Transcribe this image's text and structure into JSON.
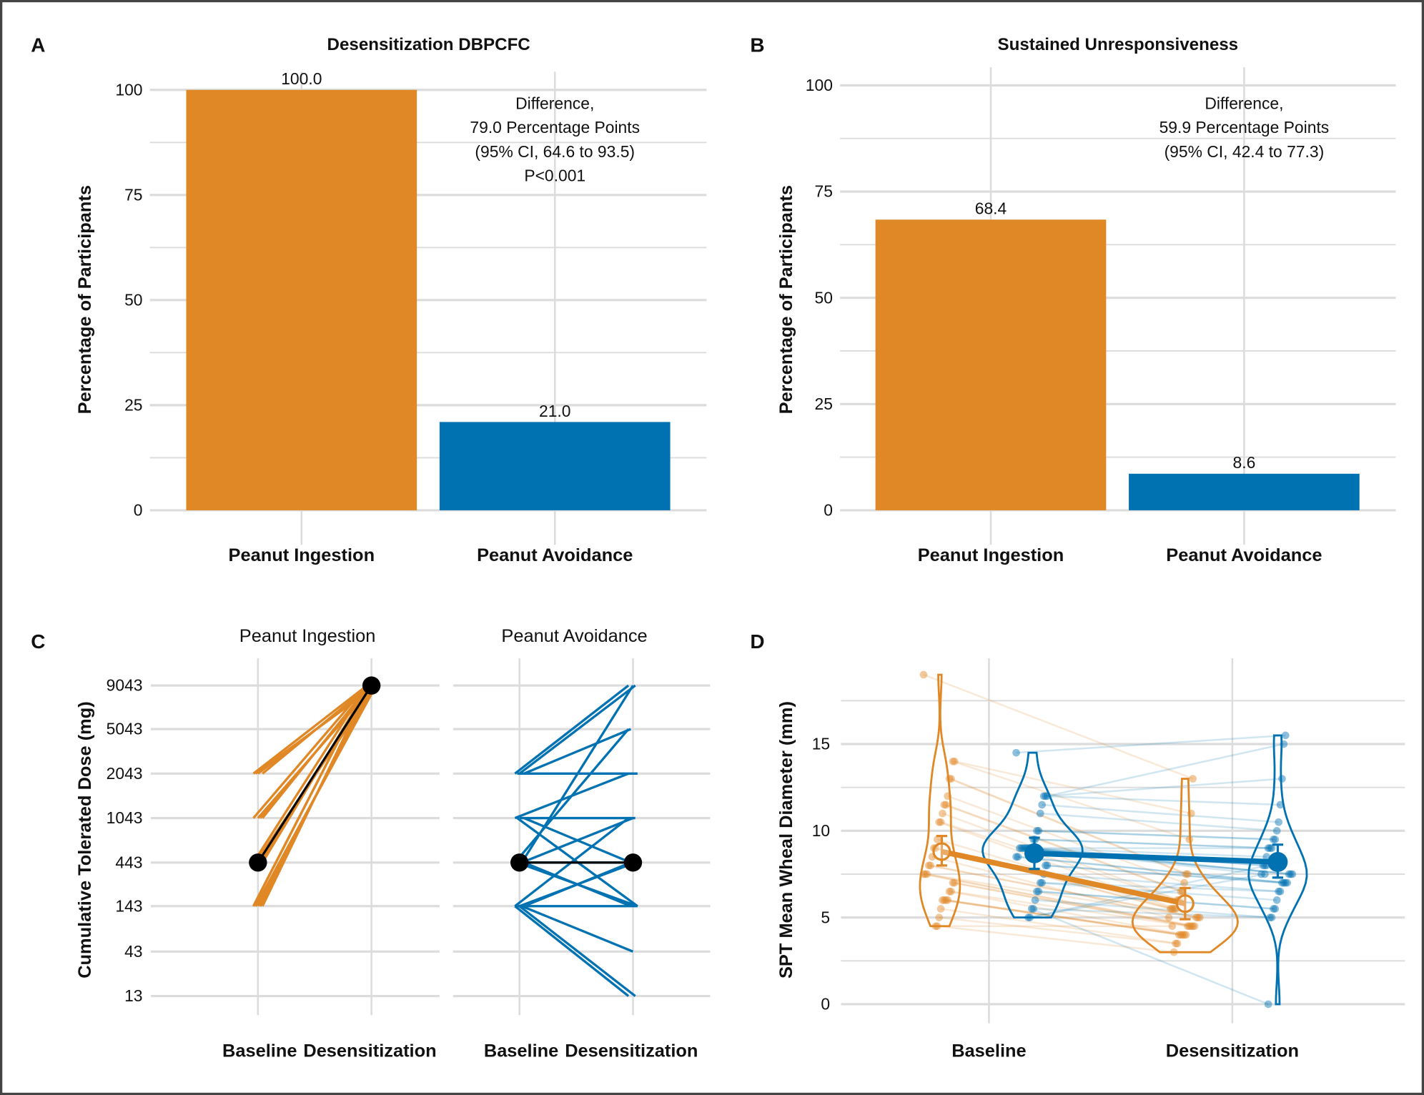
{
  "colors": {
    "ingestion": "#E08726",
    "avoidance": "#0072B2",
    "grid": "#dcdcdc",
    "median": "#000000"
  },
  "chart_data": [
    {
      "panel": "A",
      "type": "bar",
      "title": "Desensitization DBPCFC",
      "ylabel": "Percentage of Participants",
      "categories": [
        "Peanut Ingestion",
        "Peanut Avoidance"
      ],
      "values": [
        100.0,
        21.0
      ],
      "labels": [
        "100.0",
        "21.0"
      ],
      "yticks": [
        0,
        25,
        50,
        75,
        100
      ],
      "ylim": [
        0,
        100
      ],
      "grid": true,
      "annotation": [
        "Difference,",
        "79.0 Percentage Points",
        "(95% CI, 64.6 to 93.5)",
        "P<0.001"
      ]
    },
    {
      "panel": "B",
      "type": "bar",
      "title": "Sustained Unresponsiveness",
      "ylabel": "Percentage of Participants",
      "categories": [
        "Peanut Ingestion",
        "Peanut Avoidance"
      ],
      "values": [
        68.4,
        8.6
      ],
      "labels": [
        "68.4",
        "8.6"
      ],
      "yticks": [
        0,
        25,
        50,
        75,
        100
      ],
      "ylim": [
        0,
        100
      ],
      "grid": true,
      "annotation": [
        "Difference,",
        "59.9 Percentage Points",
        "(95% CI, 42.4 to 77.3)"
      ]
    },
    {
      "panel": "C",
      "type": "line",
      "ylabel": "Cumulative Tolerated Dose (mg)",
      "yticks": [
        13,
        43,
        143,
        443,
        1043,
        2043,
        5043,
        9043
      ],
      "categories": [
        "Baseline",
        "Desensitization"
      ],
      "facets": [
        {
          "title": "Peanut Ingestion",
          "median": [
            443,
            9043
          ],
          "pairs": [
            [
              2043,
              9043
            ],
            [
              2043,
              9043
            ],
            [
              2043,
              9043
            ],
            [
              2043,
              9043
            ],
            [
              1043,
              9043
            ],
            [
              1043,
              9043
            ],
            [
              1043,
              9043
            ],
            [
              1043,
              9043
            ],
            [
              443,
              9043
            ],
            [
              443,
              9043
            ],
            [
              443,
              9043
            ],
            [
              443,
              9043
            ],
            [
              443,
              9043
            ],
            [
              143,
              9043
            ],
            [
              143,
              9043
            ],
            [
              143,
              9043
            ],
            [
              143,
              9043
            ],
            [
              143,
              9043
            ],
            [
              143,
              9043
            ],
            [
              143,
              9043
            ],
            [
              143,
              9043
            ]
          ]
        },
        {
          "title": "Peanut Avoidance",
          "median": [
            443,
            443
          ],
          "pairs": [
            [
              2043,
              9043
            ],
            [
              2043,
              9043
            ],
            [
              2043,
              5043
            ],
            [
              2043,
              2043
            ],
            [
              443,
              9043
            ],
            [
              1043,
              2043
            ],
            [
              1043,
              1043
            ],
            [
              1043,
              443
            ],
            [
              1043,
              143
            ],
            [
              443,
              1043
            ],
            [
              443,
              5043
            ],
            [
              443,
              443
            ],
            [
              443,
              143
            ],
            [
              443,
              143
            ],
            [
              443,
              143
            ],
            [
              143,
              1043
            ],
            [
              143,
              443
            ],
            [
              143,
              443
            ],
            [
              143,
              143
            ],
            [
              143,
              43
            ],
            [
              143,
              13
            ],
            [
              143,
              13
            ]
          ]
        }
      ]
    },
    {
      "panel": "D",
      "type": "scatter",
      "ylabel": "SPT Mean Wheal Diameter (mm)",
      "categories": [
        "Baseline",
        "Desensitization"
      ],
      "yticks": [
        0,
        5,
        10,
        15
      ],
      "ylim": [
        0,
        19
      ],
      "grid": true,
      "groups": [
        {
          "group": "Peanut Ingestion",
          "baseline": [
            19,
            14,
            14,
            13,
            13,
            12,
            11.5,
            11.5,
            11,
            10.5,
            10.5,
            9.5,
            9,
            9,
            8.5,
            8,
            8,
            7.5,
            7.5,
            7.5,
            7,
            7,
            6.5,
            6.5,
            6,
            6,
            6,
            6,
            5.5,
            5,
            4.5,
            4.5
          ],
          "desensitization": [
            13,
            11,
            9.5,
            7.5,
            7.5,
            7,
            6.5,
            6.5,
            6,
            6,
            5.5,
            5.5,
            5.5,
            5.5,
            5,
            5,
            5,
            5,
            4.5,
            4.5,
            4.5,
            4.5,
            4.5,
            4,
            4,
            4,
            4,
            4,
            3.5,
            3.5,
            3,
            4.5
          ],
          "mean": [
            8.8,
            5.8
          ],
          "ci_low": [
            8.0,
            4.9
          ],
          "ci_high": [
            9.7,
            6.7
          ]
        },
        {
          "group": "Peanut Avoidance",
          "baseline": [
            14.5,
            12,
            12,
            12,
            11.5,
            11,
            10,
            10,
            9.5,
            9.5,
            9,
            9,
            9,
            9,
            9,
            9,
            9,
            9,
            8.5,
            8.5,
            8,
            8,
            7.5,
            7,
            7,
            6.5,
            6.5,
            6,
            5.5,
            5.5,
            5,
            5
          ],
          "desensitization": [
            15.5,
            15,
            13,
            11.5,
            10.5,
            10,
            9.5,
            9.5,
            9,
            9,
            9,
            8.5,
            8,
            8,
            7.5,
            7.5,
            7.5,
            7.5,
            7,
            7,
            7,
            7,
            6.5,
            6.5,
            6,
            5.5,
            5.5,
            5,
            5,
            0,
            8,
            7.5
          ],
          "mean": [
            8.7,
            8.2
          ],
          "ci_low": [
            7.8,
            7.3
          ],
          "ci_high": [
            9.6,
            9.2
          ]
        }
      ]
    }
  ]
}
